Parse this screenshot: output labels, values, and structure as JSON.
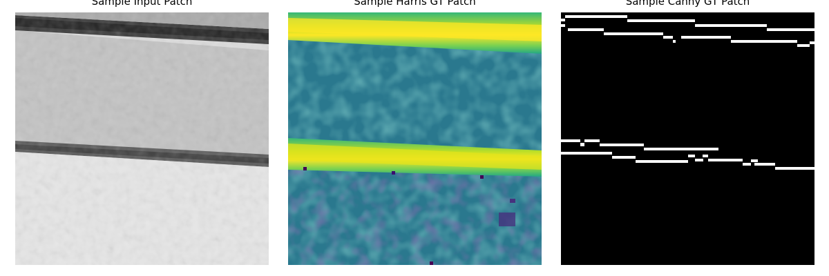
{
  "figure": {
    "panels": [
      {
        "title": "Sample Input Patch",
        "colormap": "gray"
      },
      {
        "title": "Sample Harris GT Patch",
        "colormap": "viridis"
      },
      {
        "title": "Sample Canny GT Patch",
        "colormap": "binary"
      }
    ]
  }
}
